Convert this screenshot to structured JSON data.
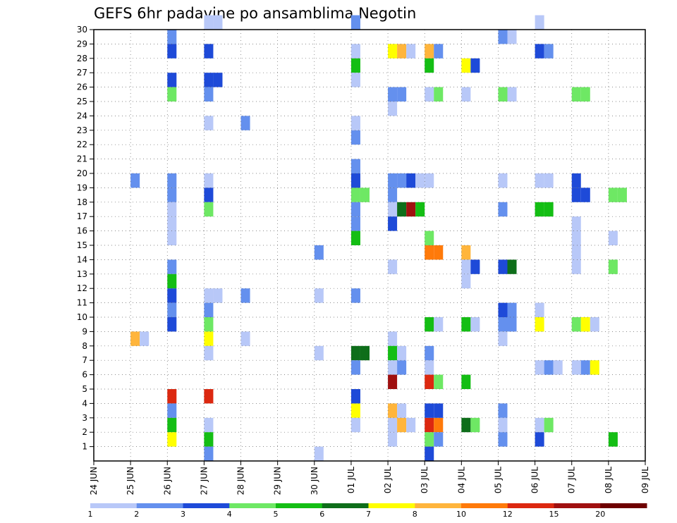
{
  "chart_data": {
    "type": "heatmap",
    "title": "GEFS 6hr padavine po ansamblima Negotin",
    "xlabel": "",
    "ylabel": "",
    "x_ticks": [
      "24 JUN",
      "25 JUN",
      "26 JUN",
      "27 JUN",
      "28 JUN",
      "29 JUN",
      "30 JUN",
      "01 JUL",
      "02 JUL",
      "03 JUL",
      "04 JUL",
      "05 JUL",
      "06 JUL",
      "07 JUL",
      "08 JUL",
      "09 JUL"
    ],
    "y_ticks": [
      "1",
      "2",
      "3",
      "4",
      "5",
      "6",
      "7",
      "8",
      "9",
      "10",
      "11",
      "12",
      "13",
      "14",
      "15",
      "16",
      "17",
      "18",
      "19",
      "20",
      "21",
      "22",
      "23",
      "24",
      "25",
      "26",
      "27",
      "28",
      "29",
      "30"
    ],
    "ylim": [
      0,
      30
    ],
    "steps_per_day": 4,
    "grid": true,
    "colorbar": {
      "boundaries": [
        "1",
        "2",
        "3",
        "4",
        "5",
        "6",
        "7",
        "8",
        "10",
        "12",
        "15",
        "20"
      ],
      "colors": [
        "#b8c8f8",
        "#6490ee",
        "#1e4ad8",
        "#6ee864",
        "#14be14",
        "#0e6e1a",
        "#ffff00",
        "#ffb53c",
        "#ff7a0a",
        "#dc2810",
        "#a01010",
        "#6e0000"
      ]
    },
    "cells": [
      [
        2,
        29,
        1
      ],
      [
        2,
        28,
        2
      ],
      [
        2,
        26,
        2
      ],
      [
        2,
        25,
        3
      ],
      [
        2,
        19,
        1
      ],
      [
        2,
        18,
        1
      ],
      [
        2,
        17,
        0
      ],
      [
        2,
        16,
        0
      ],
      [
        2,
        15,
        0
      ],
      [
        2,
        13,
        1
      ],
      [
        2,
        12,
        4
      ],
      [
        2,
        11,
        2
      ],
      [
        2,
        10,
        1
      ],
      [
        2,
        9,
        2
      ],
      [
        2,
        4,
        9
      ],
      [
        2,
        3,
        1
      ],
      [
        2,
        2,
        4
      ],
      [
        2,
        1,
        6
      ],
      [
        1,
        19,
        1
      ],
      [
        1,
        8,
        7
      ],
      [
        1,
        8,
        0
      ],
      [
        3,
        30,
        0
      ],
      [
        3,
        10,
        1
      ],
      [
        3,
        26,
        2
      ],
      [
        3,
        26,
        2
      ],
      [
        3,
        28,
        2
      ],
      [
        3,
        25,
        1
      ],
      [
        3,
        23,
        0
      ],
      [
        3,
        19,
        0
      ],
      [
        3,
        18,
        2
      ],
      [
        3,
        17,
        3
      ],
      [
        3,
        11,
        0
      ],
      [
        3,
        11,
        0
      ],
      [
        3,
        9,
        3
      ],
      [
        3,
        8,
        6
      ],
      [
        3,
        7,
        0
      ],
      [
        3,
        4,
        9
      ],
      [
        3,
        2,
        0
      ],
      [
        3,
        1,
        4
      ],
      [
        3,
        0,
        1
      ],
      [
        3,
        30,
        0
      ],
      [
        4,
        23,
        1
      ],
      [
        4,
        11,
        1
      ],
      [
        4,
        8,
        0
      ],
      [
        6,
        11,
        0
      ],
      [
        6,
        14,
        1
      ],
      [
        6,
        7,
        0
      ],
      [
        6,
        0,
        0
      ],
      [
        7,
        30,
        1
      ],
      [
        7,
        22,
        1
      ],
      [
        7,
        18,
        3
      ],
      [
        7,
        11,
        1
      ],
      [
        7,
        7,
        5
      ],
      [
        7,
        6,
        1
      ],
      [
        7,
        3,
        6
      ],
      [
        7,
        28,
        0
      ],
      [
        7,
        27,
        4
      ],
      [
        7,
        26,
        0
      ],
      [
        7,
        23,
        0
      ],
      [
        7,
        20,
        1
      ],
      [
        7,
        19,
        2
      ],
      [
        7,
        18,
        3
      ],
      [
        7,
        17,
        1
      ],
      [
        7,
        16,
        1
      ],
      [
        7,
        15,
        4
      ],
      [
        7,
        7,
        5
      ],
      [
        7,
        4,
        2
      ],
      [
        7,
        2,
        0
      ],
      [
        8,
        19,
        1
      ],
      [
        8,
        18,
        1
      ],
      [
        8,
        17,
        0
      ],
      [
        8,
        8,
        0
      ],
      [
        8,
        2,
        0
      ],
      [
        8,
        28,
        6
      ],
      [
        8,
        28,
        7
      ],
      [
        8,
        25,
        1
      ],
      [
        8,
        24,
        0
      ],
      [
        8,
        19,
        1
      ],
      [
        8,
        19,
        2
      ],
      [
        8,
        17,
        5
      ],
      [
        8,
        17,
        10
      ],
      [
        8,
        17,
        4
      ],
      [
        8,
        16,
        2
      ],
      [
        8,
        13,
        0
      ],
      [
        8,
        7,
        4
      ],
      [
        8,
        6,
        0
      ],
      [
        8,
        6,
        1
      ],
      [
        8,
        5,
        10
      ],
      [
        8,
        3,
        7
      ],
      [
        8,
        2,
        7
      ],
      [
        8,
        2,
        0
      ],
      [
        8,
        1,
        0
      ],
      [
        8,
        28,
        0
      ],
      [
        8,
        25,
        1
      ],
      [
        8,
        19,
        0
      ],
      [
        8,
        7,
        0
      ],
      [
        8,
        3,
        0
      ],
      [
        9,
        28,
        7
      ],
      [
        9,
        28,
        1
      ],
      [
        9,
        25,
        0
      ],
      [
        9,
        25,
        3
      ],
      [
        9,
        19,
        0
      ],
      [
        9,
        9,
        4
      ],
      [
        9,
        6,
        0
      ],
      [
        9,
        5,
        9
      ],
      [
        9,
        5,
        3
      ],
      [
        9,
        2,
        9
      ],
      [
        9,
        2,
        8
      ],
      [
        9,
        1,
        3
      ],
      [
        9,
        1,
        1
      ],
      [
        9,
        27,
        4
      ],
      [
        9,
        15,
        3
      ],
      [
        9,
        14,
        8
      ],
      [
        9,
        14,
        8
      ],
      [
        9,
        9,
        0
      ],
      [
        9,
        7,
        1
      ],
      [
        9,
        3,
        2
      ],
      [
        9,
        3,
        2
      ],
      [
        9,
        0,
        2
      ],
      [
        10,
        27,
        6
      ],
      [
        10,
        27,
        2
      ],
      [
        10,
        25,
        0
      ],
      [
        10,
        14,
        7
      ],
      [
        10,
        13,
        0
      ],
      [
        10,
        13,
        2
      ],
      [
        10,
        12,
        0
      ],
      [
        10,
        9,
        4
      ],
      [
        10,
        9,
        0
      ],
      [
        10,
        5,
        4
      ],
      [
        10,
        2,
        5
      ],
      [
        10,
        2,
        3
      ],
      [
        11,
        17,
        1
      ],
      [
        11,
        13,
        2
      ],
      [
        11,
        13,
        5
      ],
      [
        11,
        29,
        1
      ],
      [
        11,
        29,
        0
      ],
      [
        11,
        25,
        3
      ],
      [
        11,
        25,
        0
      ],
      [
        11,
        19,
        0
      ],
      [
        11,
        10,
        2
      ],
      [
        11,
        10,
        1
      ],
      [
        11,
        9,
        1
      ],
      [
        11,
        9,
        1
      ],
      [
        11,
        8,
        0
      ],
      [
        11,
        3,
        1
      ],
      [
        11,
        2,
        0
      ],
      [
        11,
        1,
        1
      ],
      [
        12,
        30,
        0
      ],
      [
        12,
        28,
        2
      ],
      [
        12,
        28,
        1
      ],
      [
        12,
        17,
        4
      ],
      [
        12,
        17,
        4
      ],
      [
        12,
        10,
        0
      ],
      [
        12,
        6,
        0
      ],
      [
        12,
        6,
        1
      ],
      [
        12,
        6,
        0
      ],
      [
        12,
        2,
        0
      ],
      [
        12,
        2,
        3
      ],
      [
        12,
        1,
        2
      ],
      [
        12,
        19,
        0
      ],
      [
        12,
        19,
        0
      ],
      [
        12,
        9,
        6
      ],
      [
        13,
        25,
        3
      ],
      [
        13,
        25,
        3
      ],
      [
        13,
        19,
        2
      ],
      [
        13,
        18,
        2
      ],
      [
        13,
        18,
        2
      ],
      [
        13,
        16,
        0
      ],
      [
        13,
        15,
        0
      ],
      [
        13,
        14,
        0
      ],
      [
        13,
        13,
        0
      ],
      [
        13,
        9,
        3
      ],
      [
        13,
        9,
        6
      ],
      [
        13,
        9,
        0
      ],
      [
        13,
        6,
        0
      ],
      [
        13,
        6,
        1
      ],
      [
        13,
        6,
        6
      ],
      [
        14,
        18,
        3
      ],
      [
        14,
        18,
        3
      ],
      [
        14,
        15,
        0
      ],
      [
        14,
        13,
        3
      ],
      [
        14,
        1,
        4
      ]
    ]
  }
}
